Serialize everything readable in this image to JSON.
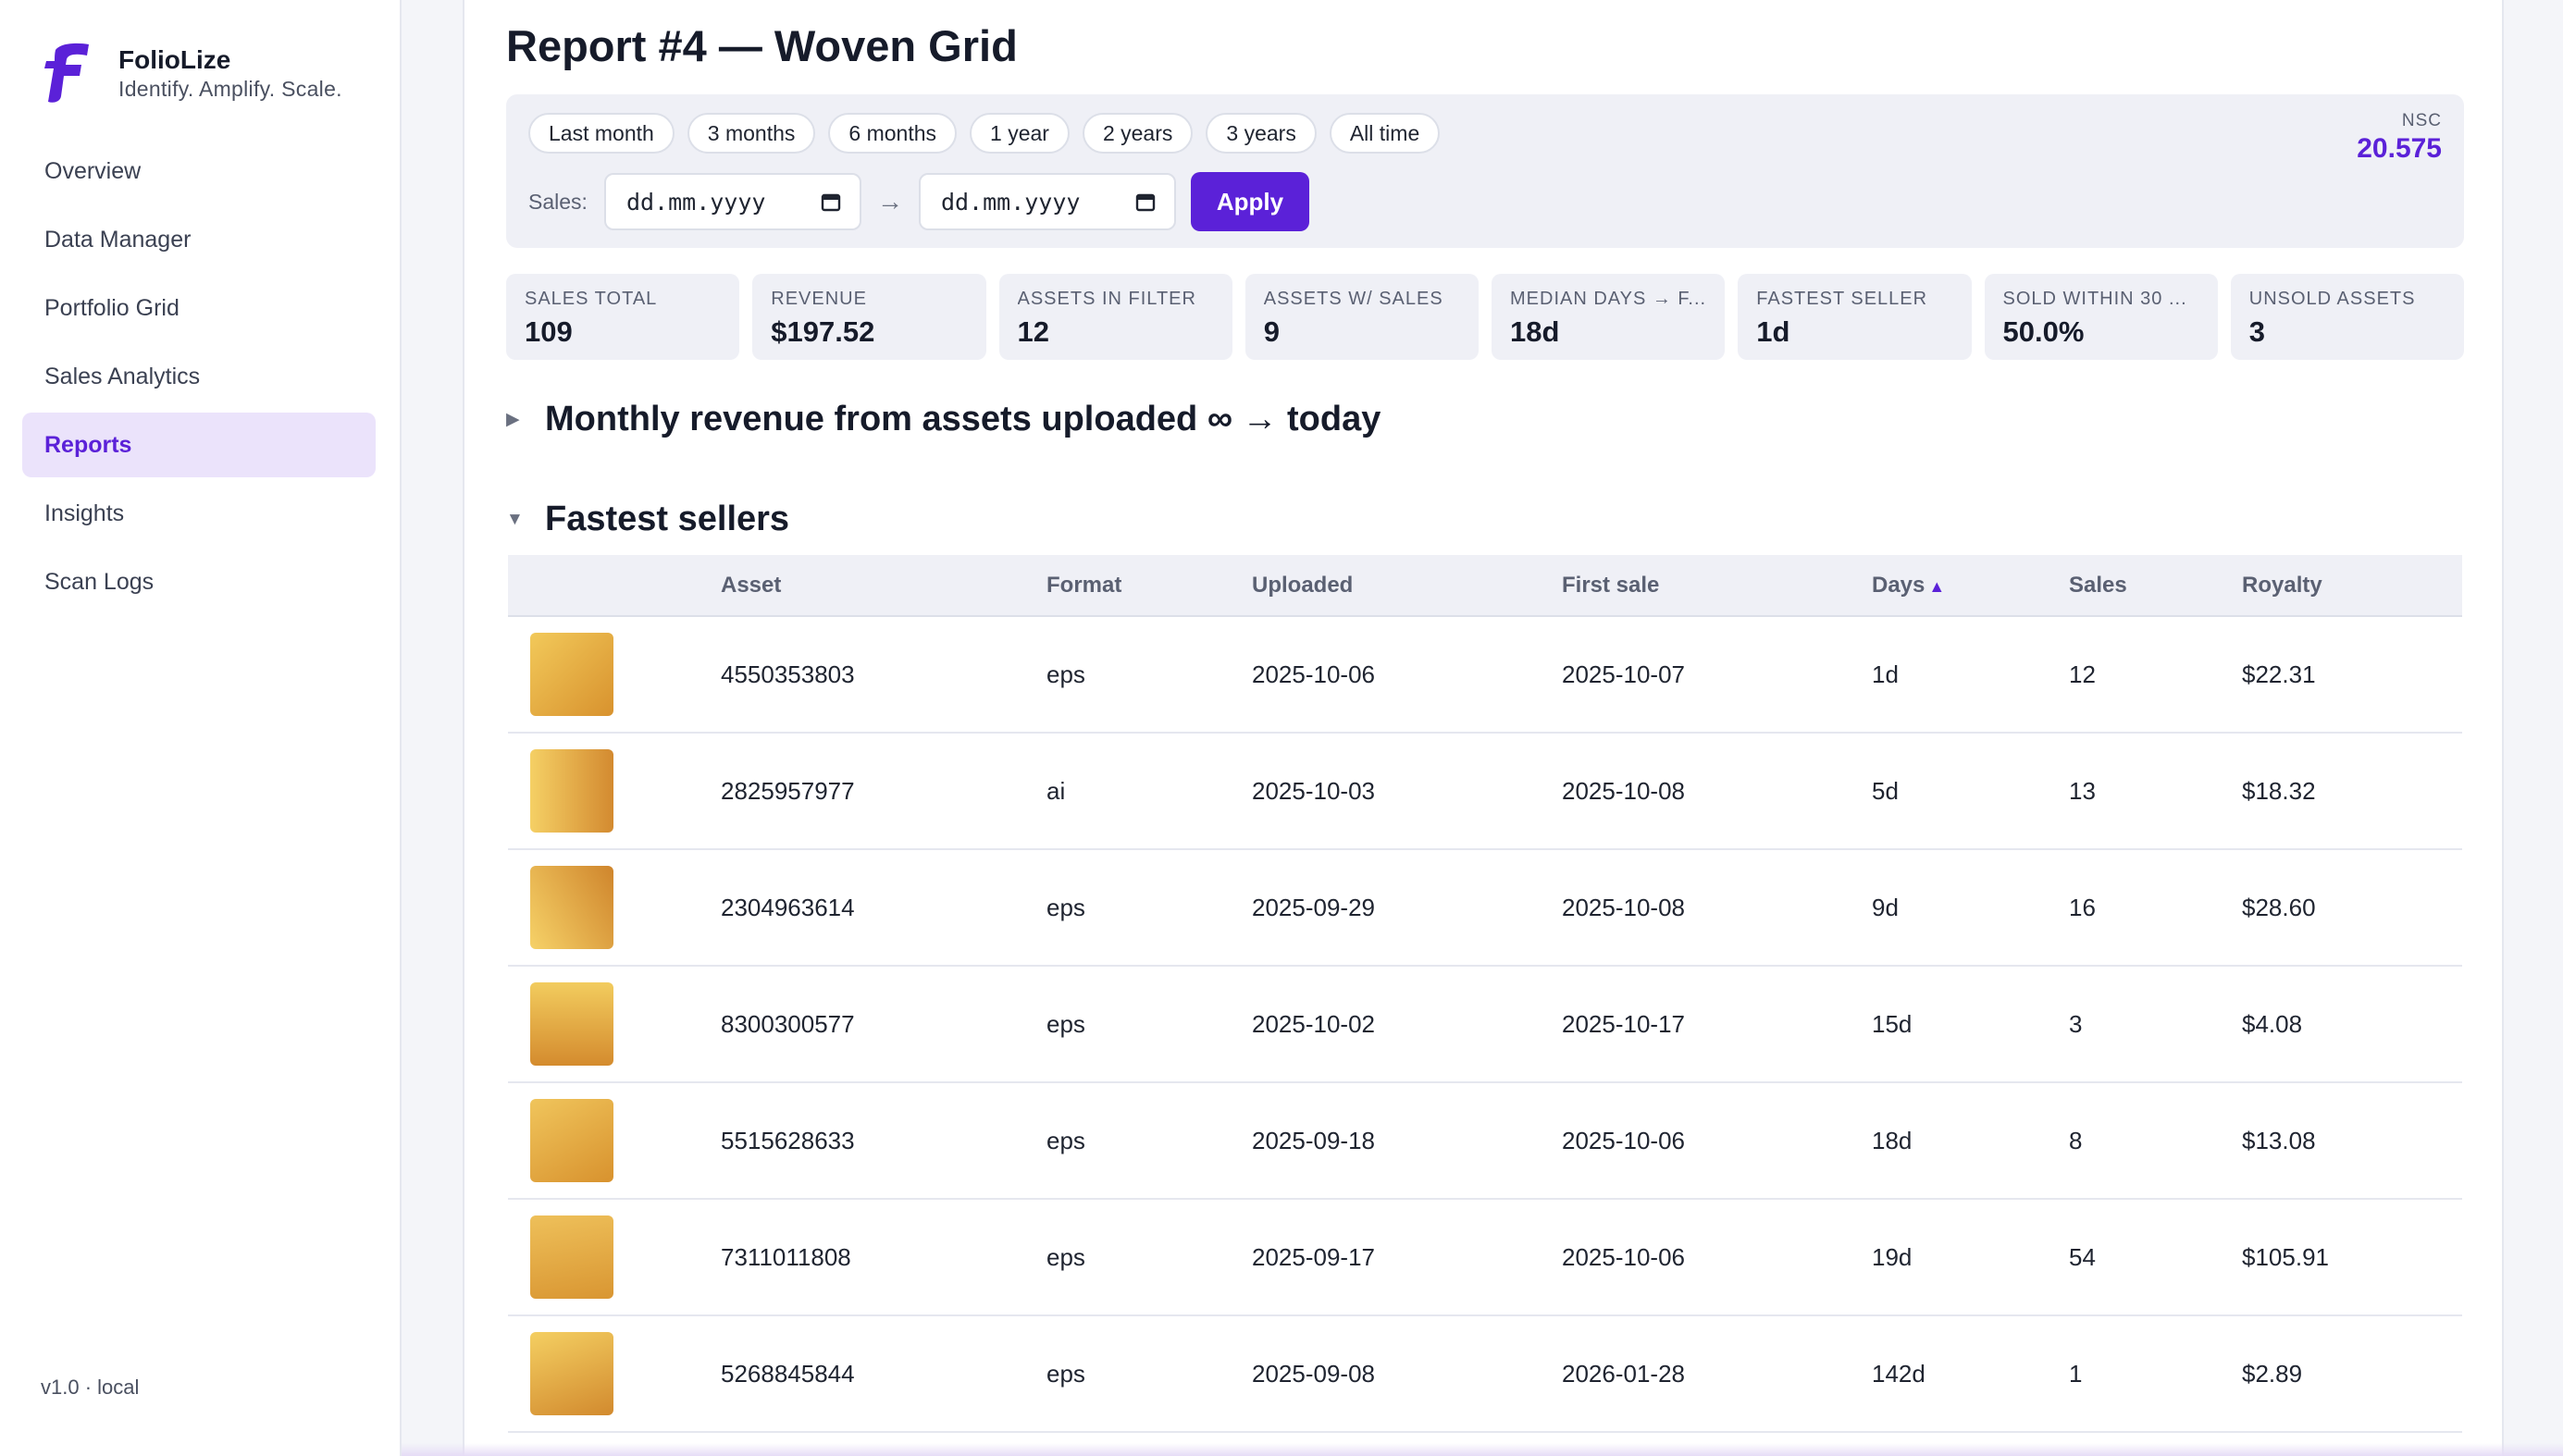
{
  "app": {
    "name": "FolioLize",
    "tagline": "Identify. Amplify. Scale.",
    "version": "v1.0 · local"
  },
  "sidebar": {
    "items": [
      {
        "label": "Overview",
        "active": false
      },
      {
        "label": "Data Manager",
        "active": false
      },
      {
        "label": "Portfolio Grid",
        "active": false
      },
      {
        "label": "Sales Analytics",
        "active": false
      },
      {
        "label": "Reports",
        "active": true
      },
      {
        "label": "Insights",
        "active": false
      },
      {
        "label": "Scan Logs",
        "active": false
      }
    ]
  },
  "page": {
    "title": "Report #4 — Woven Grid"
  },
  "filters": {
    "ranges": [
      "Last month",
      "3 months",
      "6 months",
      "1 year",
      "2 years",
      "3 years",
      "All time"
    ],
    "sales_label": "Sales:",
    "date_from_placeholder": "dd.mm.yyyy",
    "date_to_placeholder": "dd.mm.yyyy",
    "apply_label": "Apply",
    "nsc_label": "NSC",
    "nsc_value": "20.575"
  },
  "stats": [
    {
      "label": "SALES TOTAL",
      "value": "109"
    },
    {
      "label": "REVENUE",
      "value": "$197.52"
    },
    {
      "label": "ASSETS IN FILTER",
      "value": "12"
    },
    {
      "label": "ASSETS W/ SALES",
      "value": "9"
    },
    {
      "label": "MEDIAN DAYS → F...",
      "value": "18d"
    },
    {
      "label": "FASTEST SELLER",
      "value": "1d"
    },
    {
      "label": "SOLD WITHIN 30 ...",
      "value": "50.0%"
    },
    {
      "label": "UNSOLD ASSETS",
      "value": "3"
    }
  ],
  "sections": {
    "monthly": {
      "title": "Monthly revenue from assets uploaded ∞ → today",
      "expanded": false
    },
    "fastest": {
      "title": "Fastest sellers",
      "expanded": true
    }
  },
  "table": {
    "columns": [
      "",
      "Asset",
      "Format",
      "Uploaded",
      "First sale",
      "Days",
      "Sales",
      "Royalty"
    ],
    "sort_column": "Days",
    "sort_icon": "▲",
    "rows": [
      {
        "asset": "4550353803",
        "format": "eps",
        "uploaded": "2025-10-06",
        "first_sale": "2025-10-07",
        "days": "1d",
        "sales": "12",
        "royalty": "$22.31"
      },
      {
        "asset": "2825957977",
        "format": "ai",
        "uploaded": "2025-10-03",
        "first_sale": "2025-10-08",
        "days": "5d",
        "sales": "13",
        "royalty": "$18.32"
      },
      {
        "asset": "2304963614",
        "format": "eps",
        "uploaded": "2025-09-29",
        "first_sale": "2025-10-08",
        "days": "9d",
        "sales": "16",
        "royalty": "$28.60"
      },
      {
        "asset": "8300300577",
        "format": "eps",
        "uploaded": "2025-10-02",
        "first_sale": "2025-10-17",
        "days": "15d",
        "sales": "3",
        "royalty": "$4.08"
      },
      {
        "asset": "5515628633",
        "format": "eps",
        "uploaded": "2025-09-18",
        "first_sale": "2025-10-06",
        "days": "18d",
        "sales": "8",
        "royalty": "$13.08"
      },
      {
        "asset": "7311011808",
        "format": "eps",
        "uploaded": "2025-09-17",
        "first_sale": "2025-10-06",
        "days": "19d",
        "sales": "54",
        "royalty": "$105.91"
      },
      {
        "asset": "5268845844",
        "format": "eps",
        "uploaded": "2025-09-08",
        "first_sale": "2026-01-28",
        "days": "142d",
        "sales": "1",
        "royalty": "$2.89"
      }
    ]
  },
  "colors": {
    "accent": "#5b21d8",
    "thumb_light": "#f0c860",
    "thumb_dark": "#d08a30"
  }
}
